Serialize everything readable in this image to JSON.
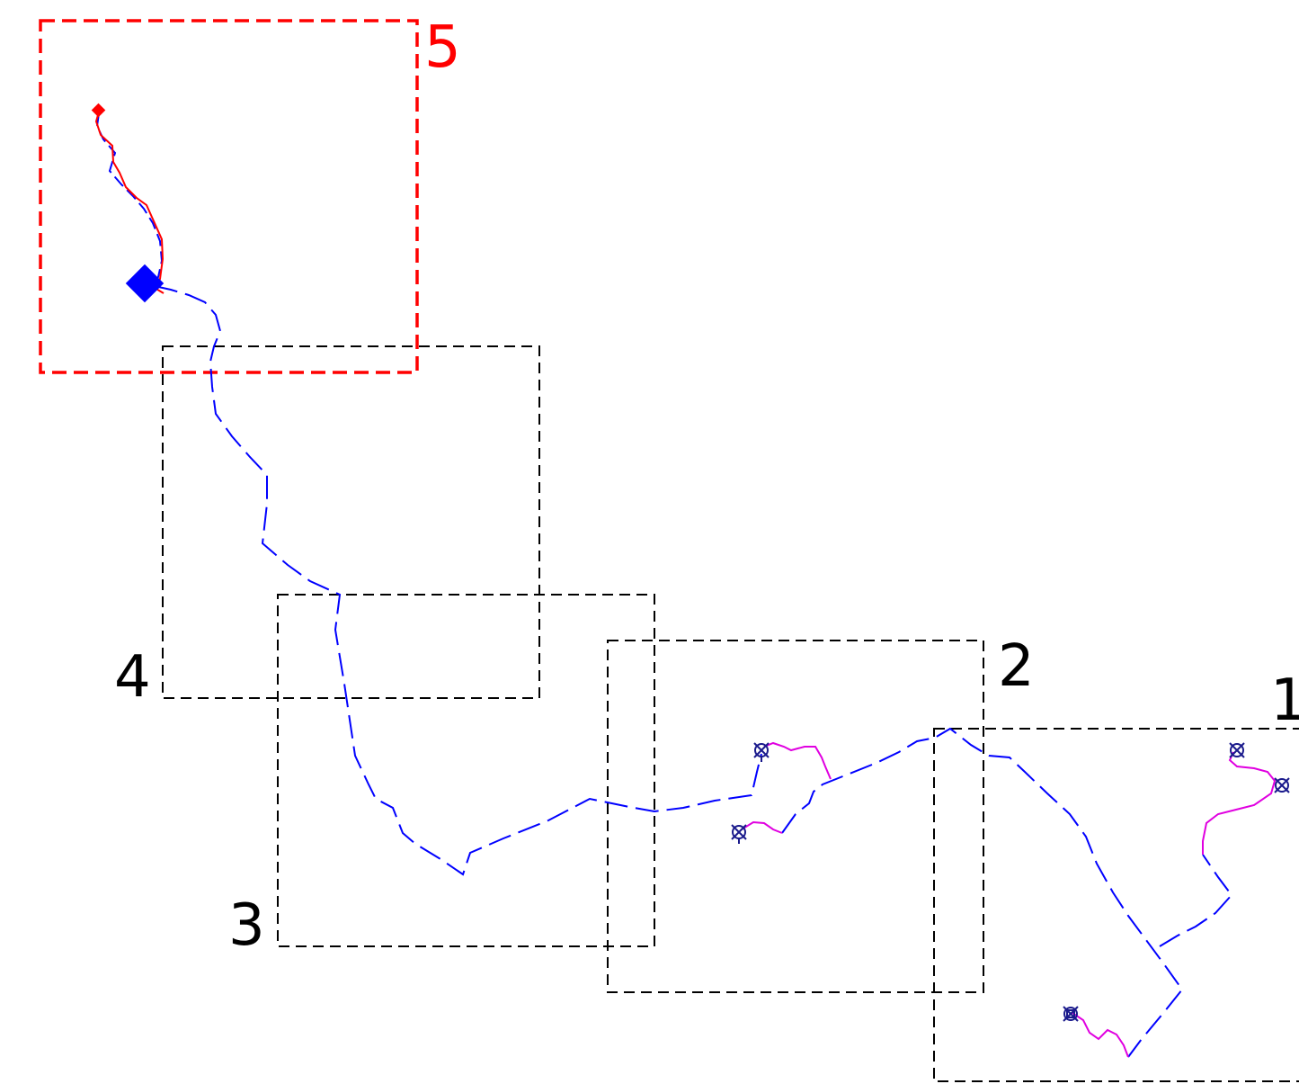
{
  "diagram": {
    "regions": [
      {
        "id": "5",
        "label": "5",
        "highlighted": true
      },
      {
        "id": "4",
        "label": "4",
        "highlighted": false
      },
      {
        "id": "3",
        "label": "3",
        "highlighted": false
      },
      {
        "id": "2",
        "label": "2",
        "highlighted": false
      },
      {
        "id": "1",
        "label": "1",
        "highlighted": false
      }
    ],
    "colors": {
      "highlight_box": "#ff0000",
      "normal_box": "#000000",
      "trajectory": "#0000ff",
      "agent_path": "#e000e0",
      "target_path": "#ff0000",
      "start_marker": "#0000ff",
      "goal_marker": "#ff0000"
    },
    "markers": {
      "start_icon": "diamond-icon",
      "goal_icon": "diamond-icon",
      "agent_icon": "robot-icon"
    }
  }
}
